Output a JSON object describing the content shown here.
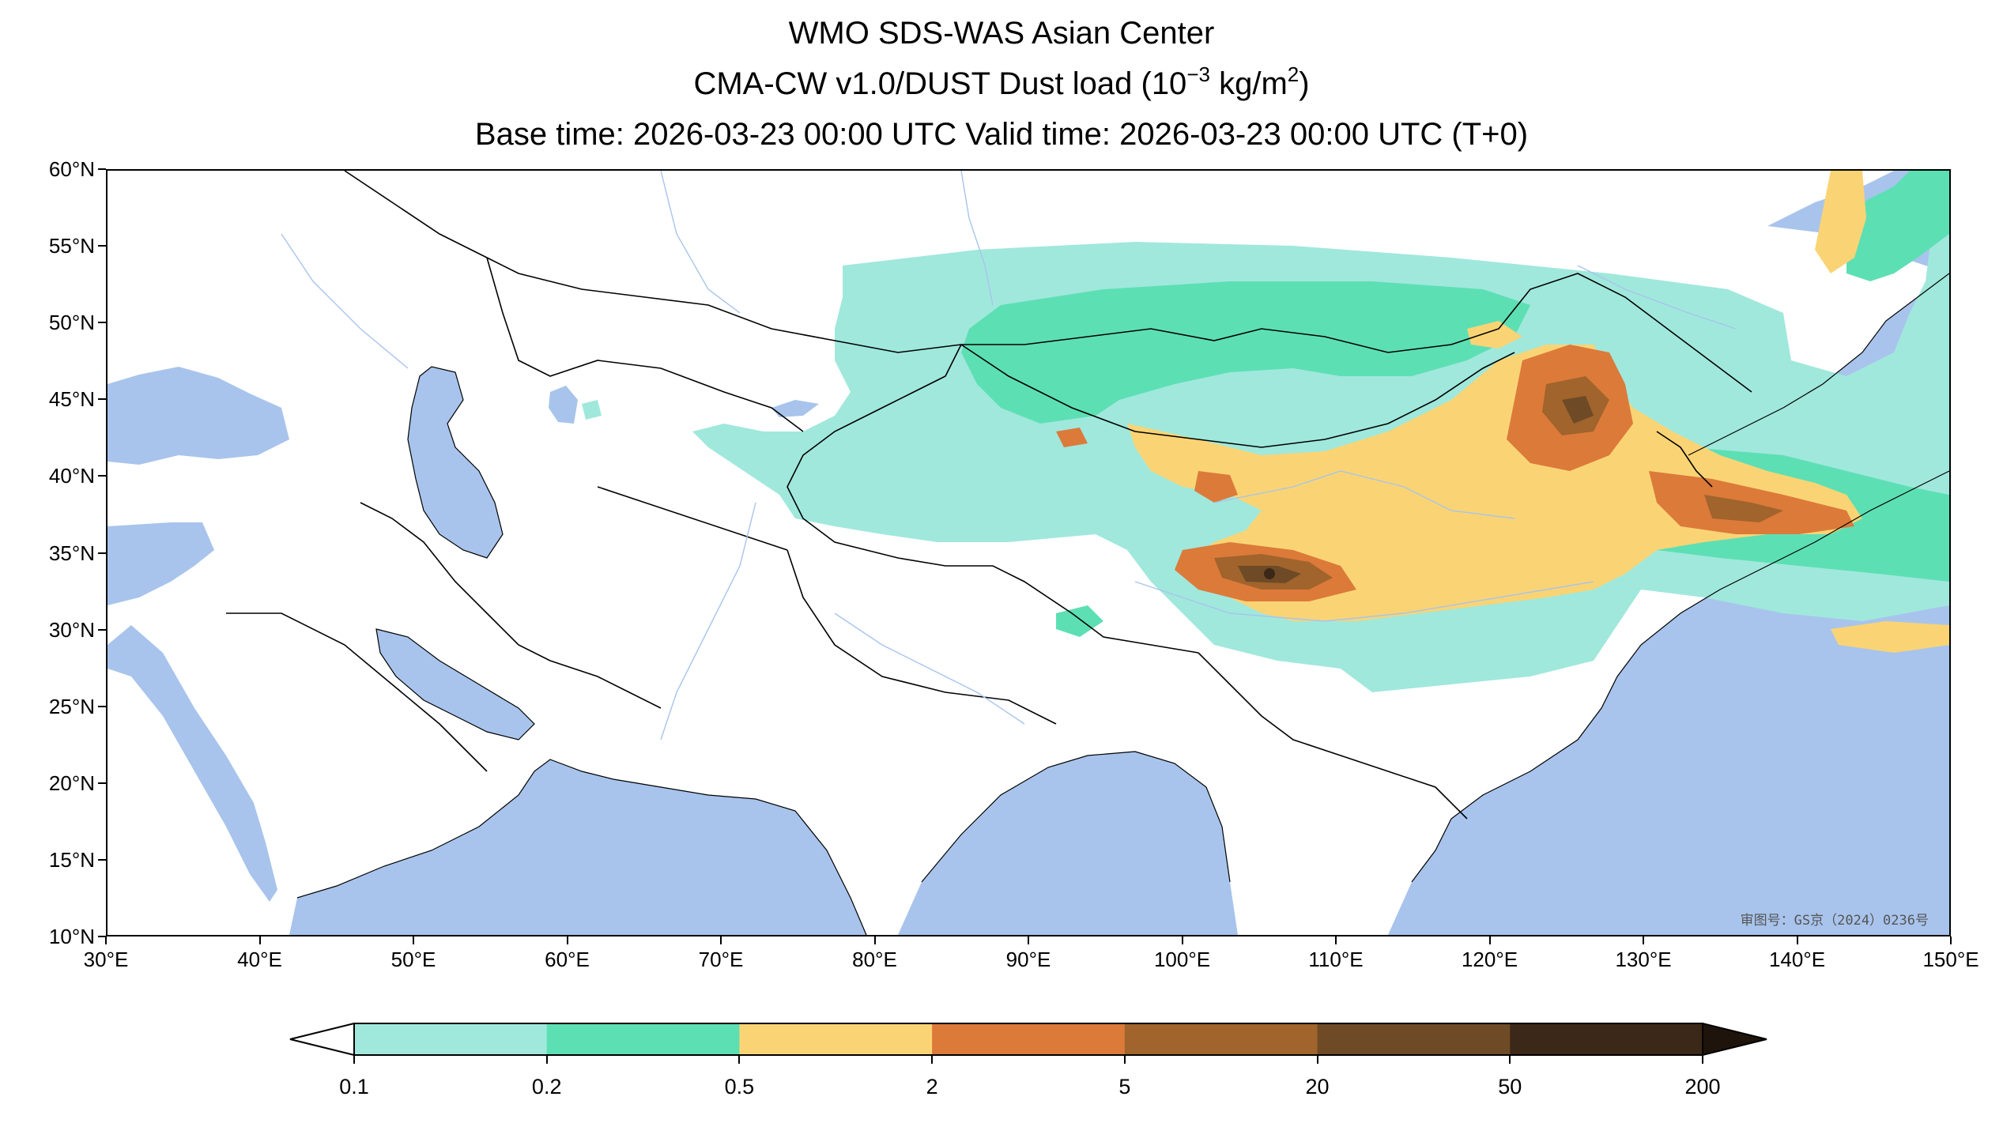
{
  "title": {
    "line1": "WMO SDS-WAS Asian Center",
    "line2_prefix": "CMA-CW v1.0/DUST Dust load (10",
    "line2_exp1": "−3",
    "line2_mid": " kg/m",
    "line2_exp2": "2",
    "line2_suffix": ")",
    "line3": "Base time: 2026-03-23 00:00 UTC Valid time: 2026-03-23 00:00 UTC (T+0)"
  },
  "map": {
    "projection": "PlateCarree",
    "lon_range": [
      30,
      150
    ],
    "lat_range": [
      10,
      60
    ],
    "x_ticks": [
      "30°E",
      "40°E",
      "50°E",
      "60°E",
      "70°E",
      "80°E",
      "90°E",
      "100°E",
      "110°E",
      "120°E",
      "130°E",
      "140°E",
      "150°E"
    ],
    "y_ticks": [
      "60°N",
      "55°N",
      "50°N",
      "45°N",
      "40°N",
      "35°N",
      "30°N",
      "25°N",
      "20°N",
      "15°N",
      "10°N"
    ],
    "ocean_color": "#a8c4ec",
    "land_color": "#ffffff",
    "border_color": "#000000",
    "river_color": "#a8c4ec",
    "review_number": "审图号：GS京（2024）0236号"
  },
  "colorbar": {
    "levels": [
      "0.1",
      "0.2",
      "0.5",
      "2",
      "5",
      "20",
      "50",
      "200"
    ],
    "colors": [
      "#a0e8dc",
      "#5ddfb4",
      "#fad474",
      "#dc7a3a",
      "#a0642c",
      "#6e4a26",
      "#3c2818"
    ],
    "extend": "both",
    "under_color": "#ffffff",
    "over_color": "#1e140c"
  },
  "colors": {
    "c1": "#a0e8dc",
    "c2": "#5ddfb4",
    "c3": "#fad474",
    "c4": "#dc7a3a",
    "c5": "#a0642c",
    "c6": "#6e4a26",
    "c7": "#3c2818"
  }
}
